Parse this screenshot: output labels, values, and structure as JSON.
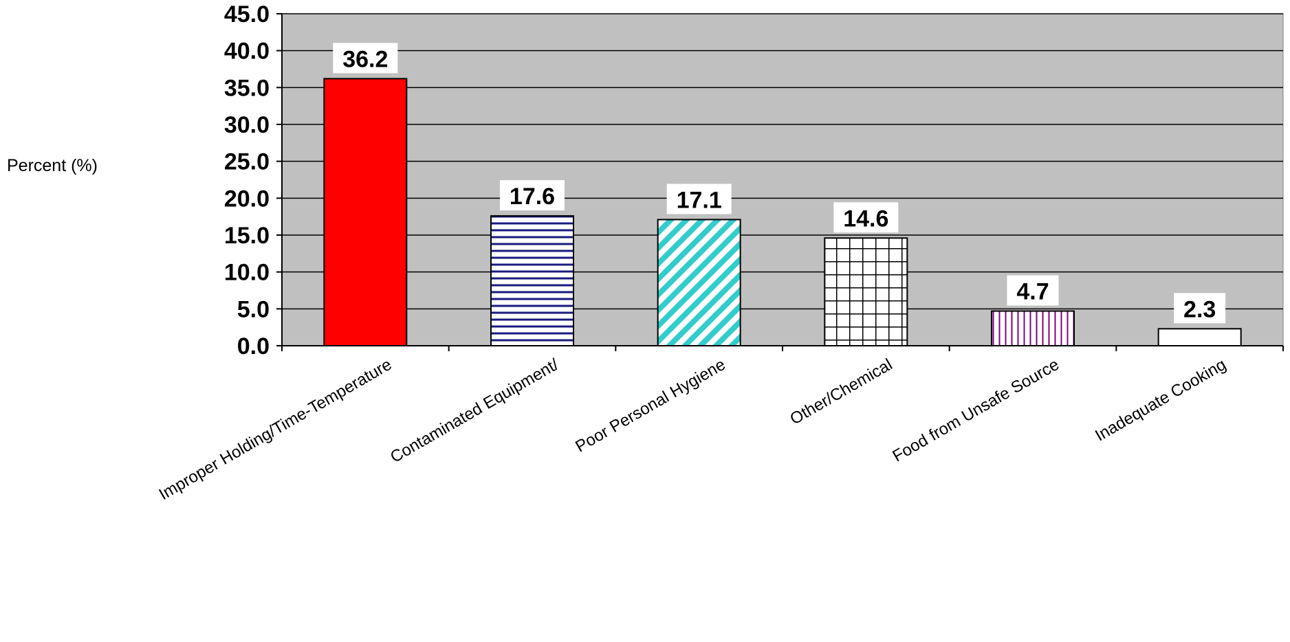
{
  "chart_data": {
    "type": "bar",
    "title": "",
    "xlabel": "",
    "ylabel": "Percent (%)",
    "ylim": [
      0,
      45
    ],
    "ytick_step": 5,
    "ytick_labels": [
      "0.0",
      "5.0",
      "10.0",
      "15.0",
      "20.0",
      "25.0",
      "30.0",
      "35.0",
      "40.0",
      "45.0"
    ],
    "grid": true,
    "legend": "none",
    "plot_background": "#c0c0c0",
    "categories": [
      "Improper Holding/Time-Temperature",
      "Contaminated Equipment/",
      "Poor Personal Hygiene",
      "Other/Chemical",
      "Food from Unsafe Source",
      "Inadequate Cooking"
    ],
    "values": [
      36.2,
      17.6,
      17.1,
      14.6,
      4.7,
      2.3
    ],
    "value_labels": [
      "36.2",
      "17.6",
      "17.1",
      "14.6",
      "4.7",
      "2.3"
    ],
    "bar_styles": [
      {
        "fill": "#ff0000",
        "pattern": "solid",
        "pattern_color": "#ff0000"
      },
      {
        "fill": "#ffffff",
        "pattern": "horizontal-lines",
        "pattern_color": "#1a1a80"
      },
      {
        "fill": "#ffffff",
        "pattern": "diagonal-stripes",
        "pattern_color": "#33cccc"
      },
      {
        "fill": "#ffffff",
        "pattern": "grid",
        "pattern_color": "#000000"
      },
      {
        "fill": "#ffffff",
        "pattern": "vertical-lines",
        "pattern_color": "#800080"
      },
      {
        "fill": "#ffffff",
        "pattern": "solid",
        "pattern_color": "#ffffff"
      }
    ]
  }
}
